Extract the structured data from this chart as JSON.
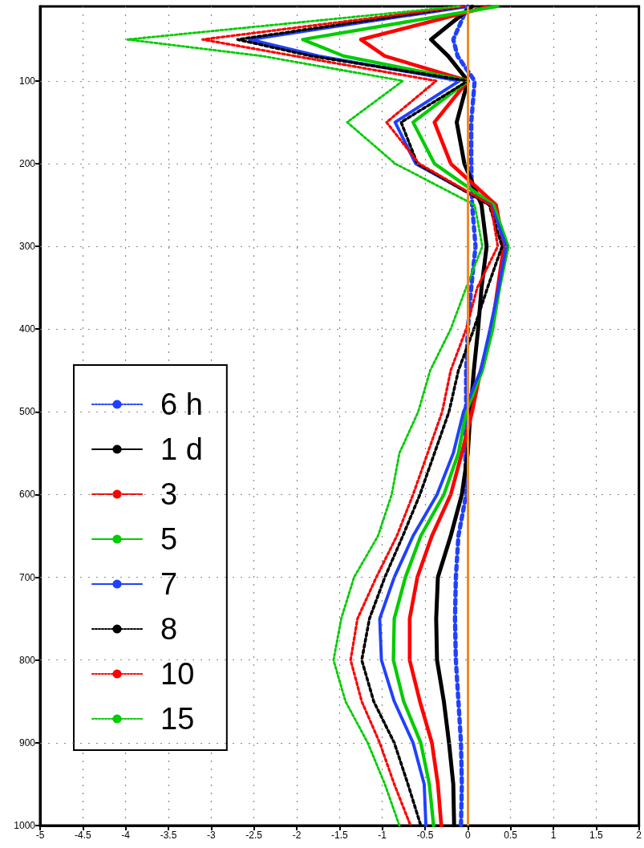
{
  "chart_data": {
    "type": "line",
    "xlim": [
      -5,
      2
    ],
    "xticks": [
      -5,
      -4.5,
      -4,
      -3.5,
      -3,
      -2.5,
      -2,
      -1.5,
      -1,
      -0.5,
      0,
      0.5,
      1,
      1.5,
      2
    ],
    "ylim": [
      1000,
      10
    ],
    "yticks": [
      100,
      200,
      300,
      400,
      500,
      600,
      700,
      800,
      900,
      1000
    ],
    "grid": true,
    "legend": "left",
    "marker": "none",
    "ref_lines": [
      {
        "axis": "x",
        "value": 0,
        "label": null,
        "color": "#f08a24",
        "line_style": "solid"
      }
    ],
    "series": [
      {
        "name": "6 h",
        "color": "#2040ff",
        "line_style": "dotted",
        "x": [
          0,
          -0.17,
          -0.12,
          0.08,
          0.04,
          0.04,
          0.05,
          0.09,
          0.04,
          0,
          -0.02,
          -0.02,
          -0.03,
          -0.02,
          -0.11,
          -0.14,
          -0.15,
          -0.14,
          -0.11,
          -0.08,
          -0.07,
          -0.08
        ],
        "values": [
          10,
          50,
          70,
          100,
          150,
          200,
          250,
          300,
          350,
          400,
          450,
          500,
          550,
          600,
          650,
          700,
          750,
          800,
          850,
          900,
          950,
          1000
        ]
      },
      {
        "name": "1 d",
        "color": "#000000",
        "line_style": "solid",
        "x": [
          0.05,
          -0.43,
          -0.23,
          0,
          -0.13,
          -0.04,
          0.16,
          0.22,
          0.16,
          0.12,
          0.07,
          0.03,
          0,
          -0.07,
          -0.2,
          -0.35,
          -0.37,
          -0.36,
          -0.28,
          -0.22,
          -0.17,
          -0.16
        ],
        "values": [
          10,
          50,
          70,
          100,
          150,
          200,
          250,
          300,
          350,
          400,
          450,
          500,
          550,
          600,
          650,
          700,
          750,
          800,
          850,
          900,
          950,
          1000
        ]
      },
      {
        "name": "3",
        "color": "#ff0000",
        "line_style": "solid",
        "x": [
          0.25,
          -1.25,
          -0.97,
          0,
          -0.39,
          -0.2,
          0.33,
          0.42,
          0.35,
          0.28,
          0.15,
          0.05,
          -0.07,
          -0.2,
          -0.42,
          -0.59,
          -0.68,
          -0.68,
          -0.56,
          -0.42,
          -0.35,
          -0.31
        ],
        "values": [
          10,
          50,
          70,
          100,
          150,
          200,
          250,
          300,
          350,
          400,
          450,
          500,
          550,
          600,
          650,
          700,
          750,
          800,
          850,
          900,
          950,
          1000
        ]
      },
      {
        "name": "5",
        "color": "#00cc00",
        "line_style": "solid",
        "x": [
          0.35,
          -1.93,
          -1.45,
          0,
          -0.64,
          -0.39,
          0.3,
          0.47,
          0.37,
          0.29,
          0.17,
          -0.02,
          -0.11,
          -0.28,
          -0.55,
          -0.73,
          -0.86,
          -0.87,
          -0.75,
          -0.55,
          -0.45,
          -0.4
        ],
        "values": [
          10,
          50,
          70,
          100,
          150,
          200,
          250,
          300,
          350,
          400,
          450,
          500,
          550,
          600,
          650,
          700,
          750,
          800,
          850,
          900,
          950,
          1000
        ]
      },
      {
        "name": "7",
        "color": "#2040ff",
        "line_style": "solid",
        "x": [
          0,
          -2.55,
          -1.74,
          -0.1,
          -0.85,
          -0.61,
          0.27,
          0.45,
          0.36,
          0.26,
          0.15,
          -0.05,
          -0.17,
          -0.36,
          -0.64,
          -0.86,
          -1.03,
          -1.01,
          -0.86,
          -0.64,
          -0.51,
          -0.49
        ],
        "values": [
          10,
          50,
          70,
          100,
          150,
          200,
          250,
          300,
          350,
          400,
          450,
          500,
          550,
          600,
          650,
          700,
          750,
          800,
          850,
          900,
          950,
          1000
        ]
      },
      {
        "name": "8",
        "color": "#000000",
        "line_style": "dotted",
        "x": [
          -0.05,
          -2.69,
          -1.83,
          0,
          -0.78,
          -0.59,
          0.25,
          0.4,
          0.23,
          0.07,
          -0.11,
          -0.22,
          -0.39,
          -0.56,
          -0.76,
          -0.97,
          -1.15,
          -1.24,
          -1.1,
          -0.86,
          -0.7,
          -0.55
        ],
        "values": [
          10,
          50,
          70,
          100,
          150,
          200,
          250,
          300,
          350,
          400,
          450,
          500,
          550,
          600,
          650,
          700,
          750,
          800,
          850,
          900,
          950,
          1000
        ]
      },
      {
        "name": "10",
        "color": "#ff0000",
        "line_style": "dotted",
        "x": [
          -0.05,
          -3.1,
          -2.02,
          -0.37,
          -0.95,
          -0.57,
          0.27,
          0.35,
          0.11,
          -0.02,
          -0.2,
          -0.3,
          -0.47,
          -0.64,
          -0.83,
          -1.07,
          -1.29,
          -1.37,
          -1.24,
          -1.03,
          -0.86,
          -0.67
        ],
        "values": [
          10,
          50,
          70,
          100,
          150,
          200,
          250,
          300,
          350,
          400,
          450,
          500,
          550,
          600,
          650,
          700,
          750,
          800,
          850,
          900,
          950,
          1000
        ]
      },
      {
        "name": "15",
        "color": "#00cc00",
        "line_style": "dotted",
        "x": [
          -0.1,
          -3.98,
          -2.4,
          -0.76,
          -1.41,
          -0.85,
          0.08,
          0.17,
          -0.02,
          -0.2,
          -0.44,
          -0.58,
          -0.8,
          -0.89,
          -1.05,
          -1.33,
          -1.48,
          -1.57,
          -1.43,
          -1.17,
          -0.97,
          -0.8
        ],
        "values": [
          10,
          50,
          70,
          100,
          150,
          200,
          250,
          300,
          350,
          400,
          450,
          500,
          550,
          600,
          650,
          700,
          750,
          800,
          850,
          900,
          950,
          1000
        ]
      }
    ]
  }
}
